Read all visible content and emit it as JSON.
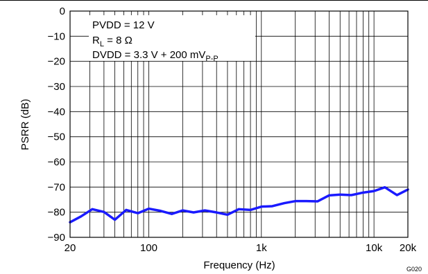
{
  "chart_data": {
    "type": "line",
    "title": "",
    "xlabel": "Frequency (Hz)",
    "ylabel": "PSRR (dB)",
    "x_scale": "log",
    "xlim": [
      20,
      20000
    ],
    "ylim": [
      -90,
      0
    ],
    "grid": true,
    "legend": "none",
    "x_ticks": [
      {
        "value": 20,
        "label": "20"
      },
      {
        "value": 100,
        "label": "100"
      },
      {
        "value": 1000,
        "label": "1k"
      },
      {
        "value": 10000,
        "label": "10k"
      },
      {
        "value": 20000,
        "label": "20k"
      }
    ],
    "y_ticks": [
      {
        "value": 0,
        "label": "0"
      },
      {
        "value": -10,
        "label": "−10"
      },
      {
        "value": -20,
        "label": "−20"
      },
      {
        "value": -30,
        "label": "−30"
      },
      {
        "value": -40,
        "label": "−40"
      },
      {
        "value": -50,
        "label": "−50"
      },
      {
        "value": -60,
        "label": "−60"
      },
      {
        "value": -70,
        "label": "−70"
      },
      {
        "value": -80,
        "label": "−80"
      },
      {
        "value": -90,
        "label": "−90"
      }
    ],
    "annotations": [
      {
        "main": "PVDD = 12 V"
      },
      {
        "main": "R",
        "sub": "L",
        "rest": " = 8 Ω"
      },
      {
        "main": "DVDD = 3.3 V + 200 mV",
        "sub": "P-P"
      }
    ],
    "figure_id": "G020",
    "series": [
      {
        "color": "#1a1aff",
        "x": [
          20,
          25,
          31.5,
          40,
          50,
          63,
          80,
          100,
          125,
          160,
          200,
          250,
          315,
          400,
          500,
          630,
          800,
          1000,
          1250,
          1600,
          2000,
          2500,
          3150,
          4000,
          5000,
          6300,
          8000,
          10000,
          12500,
          16000,
          20000
        ],
        "y": [
          -84,
          -81.7,
          -78.8,
          -79.9,
          -83,
          -79.1,
          -80.4,
          -78.6,
          -79.4,
          -80.7,
          -79.3,
          -80.1,
          -79.3,
          -80.1,
          -81,
          -78.8,
          -79.1,
          -77.8,
          -77.6,
          -76.4,
          -75.6,
          -75.6,
          -75.7,
          -73.3,
          -73,
          -73.2,
          -72.2,
          -71.6,
          -70.1,
          -73.2,
          -71
        ]
      }
    ]
  }
}
